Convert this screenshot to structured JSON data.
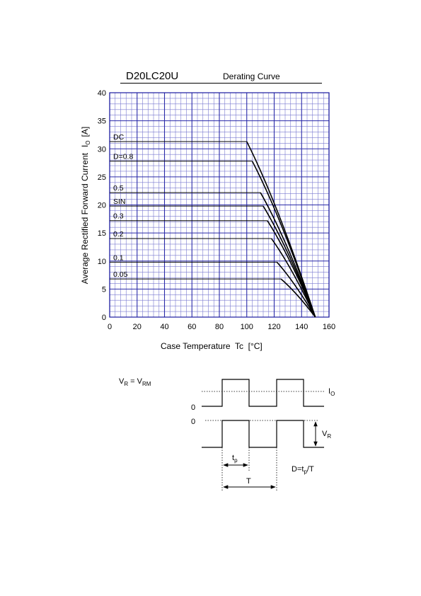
{
  "header": {
    "part_number": "D20LC20U",
    "curve_name": "Derating Curve"
  },
  "chart_data": {
    "type": "line",
    "xlabel": "Case Temperature  Tc  [°C]",
    "ylabel": "Average Rectified Forward Current  IO [A]",
    "ylabel_main": "Average Rectified Forward Current",
    "ylabel_sym": "I",
    "ylabel_sub": "O",
    "ylabel_unit": "[A]",
    "xlim": [
      0,
      160
    ],
    "ylim": [
      0,
      40
    ],
    "x_ticks": [
      "0",
      "20",
      "40",
      "60",
      "80",
      "100",
      "120",
      "140",
      "160"
    ],
    "y_ticks": [
      "0",
      "5",
      "10",
      "15",
      "20",
      "25",
      "30",
      "35",
      "40"
    ],
    "grid": true,
    "series": [
      {
        "name": "DC",
        "x": [
          0,
          100,
          150
        ],
        "y": [
          31.3,
          31.3,
          0
        ]
      },
      {
        "name": "D=0.8",
        "x": [
          0,
          104,
          150
        ],
        "y": [
          27.8,
          27.8,
          0
        ]
      },
      {
        "name": "0.5",
        "x": [
          0,
          110,
          150
        ],
        "y": [
          22.2,
          22.2,
          0
        ]
      },
      {
        "name": "SIN",
        "x": [
          0,
          112,
          150
        ],
        "y": [
          19.8,
          19.8,
          0
        ]
      },
      {
        "name": "0.3",
        "x": [
          0,
          115,
          150
        ],
        "y": [
          17.2,
          17.2,
          0
        ]
      },
      {
        "name": "0.2",
        "x": [
          0,
          118,
          150
        ],
        "y": [
          14.0,
          14.0,
          0
        ]
      },
      {
        "name": "0.1",
        "x": [
          0,
          122,
          150
        ],
        "y": [
          9.8,
          9.8,
          0
        ]
      },
      {
        "name": "0.05",
        "x": [
          0,
          125,
          150
        ],
        "y": [
          6.8,
          6.8,
          0
        ]
      }
    ]
  },
  "waveform": {
    "vr_eq_lhs": "V",
    "vr_eq_lhs_sub": "R",
    "vr_eq_mid": " = V",
    "vr_eq_rhs_sub": "RM",
    "io_label": "I",
    "io_sub": "O",
    "zero_top": "0",
    "zero_bottom": "0",
    "vr_label": "V",
    "vr_sub": "R",
    "tp_label": "t",
    "tp_sub": "p",
    "t_label": "T",
    "duty_prefix": "D=t",
    "duty_sub": "p",
    "duty_suffix": "/T"
  }
}
